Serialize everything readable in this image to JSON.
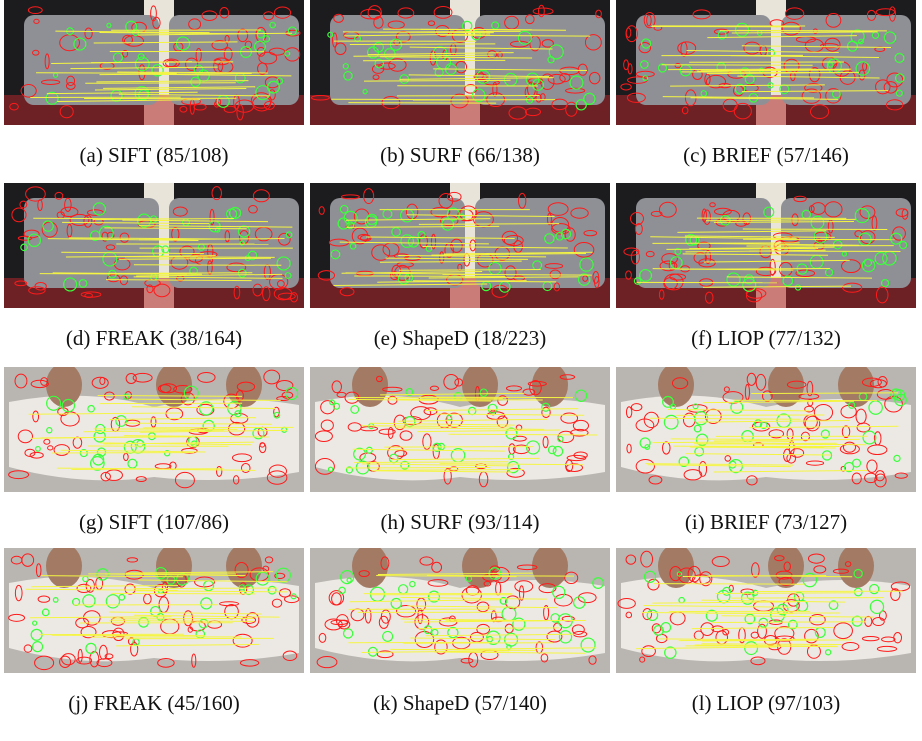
{
  "figure": {
    "panels": [
      {
        "caption": "(a) SIFT (85/108)"
      },
      {
        "caption": "(b) SURF (66/138)"
      },
      {
        "caption": "(c) BRIEF (57/146)"
      },
      {
        "caption": "(d) FREAK (38/164)"
      },
      {
        "caption": "(e) ShapeD (18/223)"
      },
      {
        "caption": "(f) LIOP (77/132)"
      },
      {
        "caption": "(g) SIFT (107/86)"
      },
      {
        "caption": "(h) SURF (93/114)"
      },
      {
        "caption": "(i) BRIEF (73/127)"
      },
      {
        "caption": "(j) FREAK (45/160)"
      },
      {
        "caption": "(k) ShapeD (57/140)"
      },
      {
        "caption": "(l) LIOP (97/103)"
      }
    ]
  }
}
